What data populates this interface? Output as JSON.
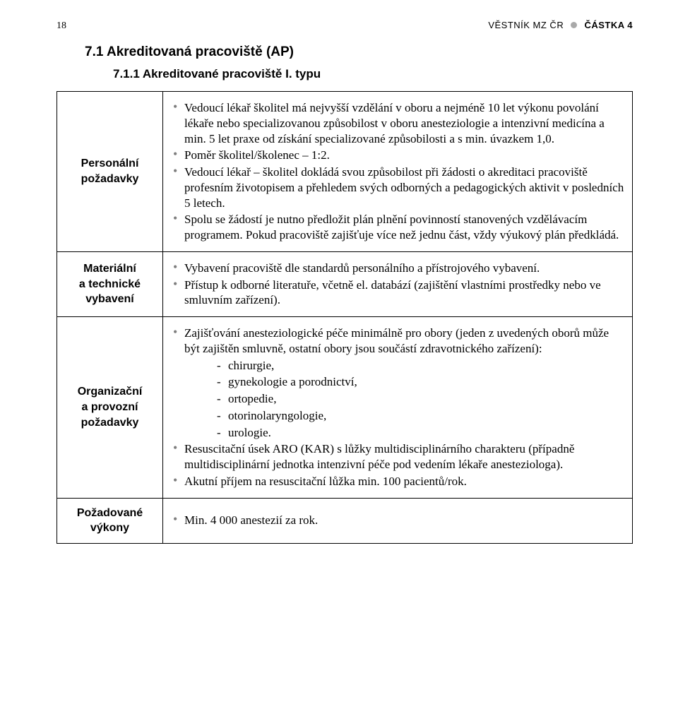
{
  "header": {
    "page_number": "18",
    "center": "VĚSTNÍK MZ ČR",
    "right": "ČÁSTKA 4"
  },
  "heading1": "7.1  Akreditovaná pracoviště (AP)",
  "heading2": "7.1.1  Akreditované pracoviště I. typu",
  "rows": {
    "r1": {
      "label_line1": "Personální",
      "label_line2": "požadavky",
      "b1": "Vedoucí lékař školitel má nejvyšší vzdělání v oboru a nejméně 10 let výkonu povolání lékaře nebo specializovanou způsobilost v oboru anesteziologie a intenzivní medicína a min. 5 let praxe od získání specializované způsobilosti a s min. úvazkem 1,0.",
      "b2": "Poměr školitel/školenec – 1:2.",
      "b3": "Vedoucí lékař – školitel dokládá svou způsobilost při žádosti o akreditaci pracoviště profesním životopisem a přehledem svých odborných a pedagogických aktivit v posledních 5 letech.",
      "b4": "Spolu se žádostí je nutno předložit plán plnění povinností stanovených vzdělávacím programem. Pokud pracoviště zajišťuje více než jednu část, vždy výukový plán předkládá."
    },
    "r2": {
      "label_line1": "Materiální",
      "label_line2": "a technické",
      "label_line3": "vybavení",
      "b1": "Vybavení pracoviště dle standardů personálního a přístrojového vybavení.",
      "b2": "Přístup k odborné literatuře, včetně el. databází (zajištění vlastními prostředky nebo ve smluvním zařízení)."
    },
    "r3": {
      "label_line1": "Organizační",
      "label_line2": "a provozní",
      "label_line3": "požadavky",
      "b1": "Zajišťování anesteziologické péče minimálně pro obory (jeden z uvedených oborů může být zajištěn smluvně, ostatní obory jsou součástí zdravotnického zařízení):",
      "d1": "chirurgie,",
      "d2": "gynekologie a porodnictví,",
      "d3": "ortopedie,",
      "d4": "otorinolaryngologie,",
      "d5": "urologie.",
      "b2": "Resuscitační úsek ARO (KAR) s lůžky multidisciplinárního charakteru (případně multidisciplinární jednotka intenzivní péče pod vedením lékaře anesteziologa).",
      "b3": "Akutní příjem na resuscitační lůžka min. 100 pacientů/rok."
    },
    "r4": {
      "label_line1": "Požadované",
      "label_line2": "výkony",
      "b1": "Min. 4 000 anestezií za rok."
    }
  }
}
